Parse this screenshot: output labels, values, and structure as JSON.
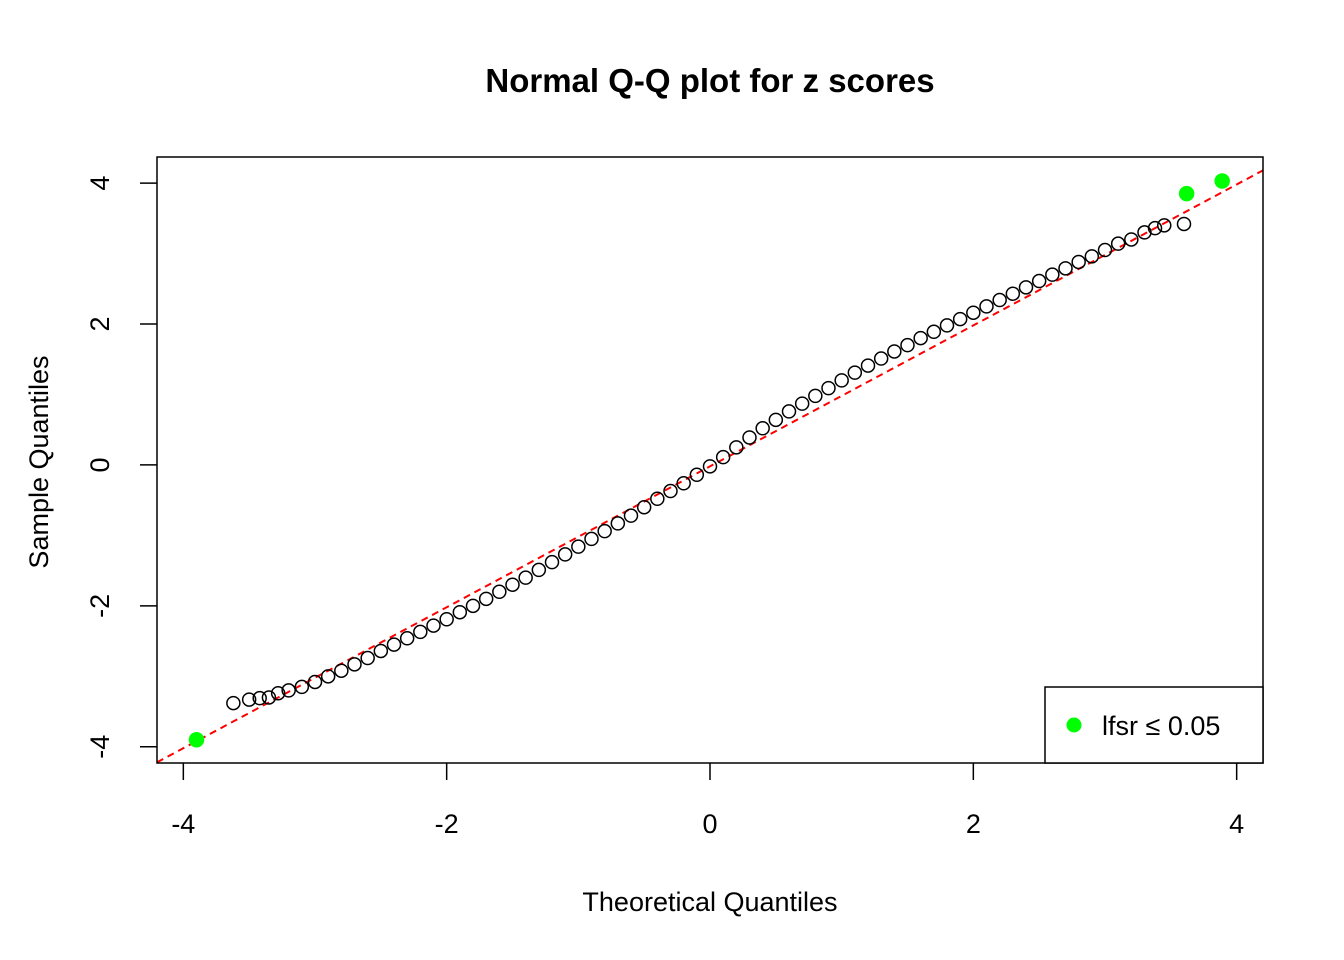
{
  "chart_data": {
    "type": "scatter",
    "title": "Normal Q-Q plot for z scores",
    "xlabel": "Theoretical Quantiles",
    "ylabel": "Sample Quantiles",
    "xlim": [
      -4.2,
      4.2
    ],
    "ylim": [
      -4.23,
      4.37
    ],
    "xticks": [
      -4,
      -2,
      0,
      2,
      4
    ],
    "yticks": [
      -4,
      -2,
      0,
      2,
      4
    ],
    "ref_line": {
      "intercept": -0.02,
      "slope": 1.0,
      "color": "#ff0000"
    },
    "legend_position": "bottomright",
    "series": [
      {
        "name": null,
        "color": "#000000",
        "filled": false,
        "x": [
          -3.62,
          -3.5,
          -3.42,
          -3.35,
          -3.28,
          -3.2,
          -3.1,
          -3.0,
          -2.9,
          -2.8,
          -2.7,
          -2.6,
          -2.5,
          -2.4,
          -2.3,
          -2.2,
          -2.1,
          -2.0,
          -1.9,
          -1.8,
          -1.7,
          -1.6,
          -1.5,
          -1.4,
          -1.3,
          -1.2,
          -1.1,
          -1.0,
          -0.9,
          -0.8,
          -0.7,
          -0.6,
          -0.5,
          -0.4,
          -0.3,
          -0.2,
          -0.1,
          0,
          0.1,
          0.2,
          0.3,
          0.4,
          0.5,
          0.6,
          0.7,
          0.8,
          0.9,
          1.0,
          1.1,
          1.2,
          1.3,
          1.4,
          1.5,
          1.6,
          1.7,
          1.8,
          1.9,
          2.0,
          2.1,
          2.2,
          2.3,
          2.4,
          2.5,
          2.6,
          2.7,
          2.8,
          2.9,
          3.0,
          3.1,
          3.2,
          3.3,
          3.38,
          3.45,
          3.6
        ],
        "values": [
          -3.38,
          -3.33,
          -3.31,
          -3.3,
          -3.24,
          -3.2,
          -3.15,
          -3.08,
          -3.0,
          -2.92,
          -2.83,
          -2.74,
          -2.64,
          -2.55,
          -2.46,
          -2.37,
          -2.28,
          -2.19,
          -2.09,
          -2.0,
          -1.9,
          -1.8,
          -1.7,
          -1.6,
          -1.49,
          -1.38,
          -1.27,
          -1.16,
          -1.05,
          -0.94,
          -0.83,
          -0.72,
          -0.6,
          -0.48,
          -0.37,
          -0.26,
          -0.14,
          -0.02,
          0.11,
          0.25,
          0.39,
          0.52,
          0.64,
          0.76,
          0.87,
          0.98,
          1.09,
          1.2,
          1.31,
          1.41,
          1.51,
          1.61,
          1.7,
          1.8,
          1.89,
          1.98,
          2.07,
          2.16,
          2.25,
          2.34,
          2.43,
          2.52,
          2.61,
          2.7,
          2.79,
          2.88,
          2.96,
          3.05,
          3.14,
          3.2,
          3.3,
          3.36,
          3.4,
          3.42
        ]
      },
      {
        "name": "lfsr  ≤ 0.05",
        "color": "#00ff00",
        "filled": true,
        "x": [
          -3.9,
          3.62,
          3.89
        ],
        "values": [
          -3.9,
          3.85,
          4.03
        ]
      }
    ]
  }
}
